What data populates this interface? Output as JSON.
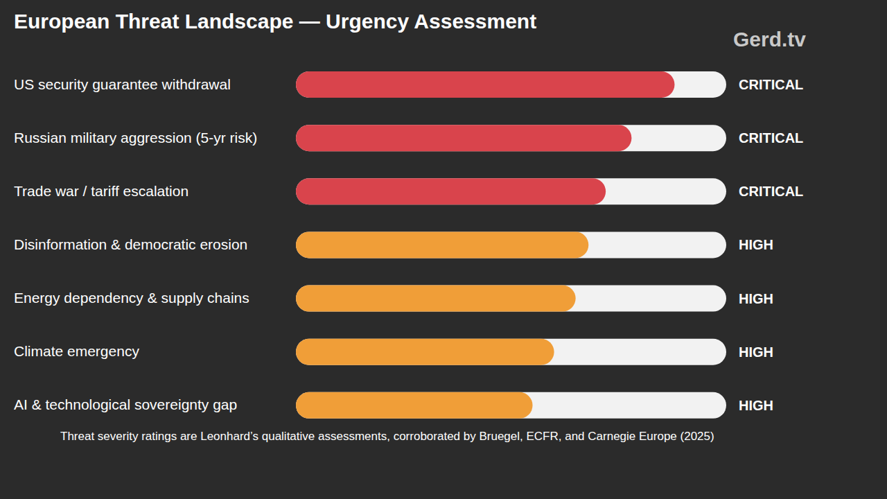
{
  "chart_data": {
    "type": "bar",
    "orientation": "horizontal",
    "title": "European Threat Landscape — Urgency Assessment",
    "categories": [
      "US security guarantee withdrawal",
      "Russian military aggression (5-yr risk)",
      "Trade war / tariff escalation",
      "Disinformation & democratic erosion",
      "Energy dependency & supply chains",
      "Climate emergency",
      "AI & technological sovereignty gap"
    ],
    "values": [
      88,
      78,
      72,
      68,
      65,
      60,
      55
    ],
    "colors": [
      "#d9444c",
      "#d9444c",
      "#d9444c",
      "#f09e38",
      "#f09e38",
      "#f09e38",
      "#f09e38"
    ],
    "severity": [
      "CRITICAL",
      "CRITICAL",
      "CRITICAL",
      "HIGH",
      "HIGH",
      "HIGH",
      "HIGH"
    ],
    "xlim": [
      0,
      100
    ],
    "tick_labels": "y",
    "note": "Threat severity ratings are Leonhard’s qualitative assessments, corroborated by Bruegel, ECFR, and Carnegie Europe (2025)",
    "logo": "Gerd.tv"
  }
}
